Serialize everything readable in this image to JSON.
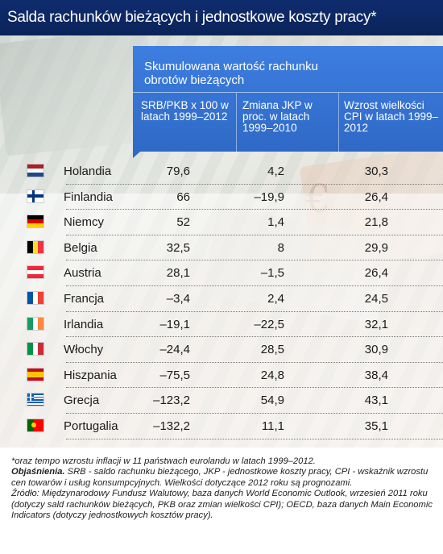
{
  "title": "Salda rachunków bieżących i jednostkowe koszty pracy*",
  "header": {
    "main": "Skumulowana wartość rachunku obrotów bieżących",
    "columns": [
      "SRB/PKB x 100 w latach 1999–2012",
      "Zmiana JKP w proc. w latach 1999–2010",
      "Wzrost wielkości CPI w latach 1999–2012"
    ]
  },
  "rows": [
    {
      "country": "Holandia",
      "flag": "netherlands-flag-icon",
      "colors": [
        "#ae1c28",
        "#ffffff",
        "#21468b"
      ],
      "orient": "h",
      "srb": "79,6",
      "jkp": "4,2",
      "cpi": "30,3"
    },
    {
      "country": "Finlandia",
      "flag": "finland-flag-icon",
      "colors": [
        "#ffffff",
        "#003580"
      ],
      "orient": "cross",
      "srb": "66",
      "jkp": "–19,9",
      "cpi": "26,4"
    },
    {
      "country": "Niemcy",
      "flag": "germany-flag-icon",
      "colors": [
        "#000000",
        "#dd0000",
        "#ffce00"
      ],
      "orient": "h",
      "srb": "52",
      "jkp": "1,4",
      "cpi": "21,8"
    },
    {
      "country": "Belgia",
      "flag": "belgium-flag-icon",
      "colors": [
        "#000000",
        "#fdda24",
        "#ef3340"
      ],
      "orient": "v",
      "srb": "32,5",
      "jkp": "8",
      "cpi": "29,9"
    },
    {
      "country": "Austria",
      "flag": "austria-flag-icon",
      "colors": [
        "#ed2939",
        "#ffffff",
        "#ed2939"
      ],
      "orient": "h",
      "srb": "28,1",
      "jkp": "–1,5",
      "cpi": "26,4"
    },
    {
      "country": "Francja",
      "flag": "france-flag-icon",
      "colors": [
        "#0055a4",
        "#ffffff",
        "#ef4135"
      ],
      "orient": "v",
      "srb": "–3,4",
      "jkp": "2,4",
      "cpi": "24,5"
    },
    {
      "country": "Irlandia",
      "flag": "ireland-flag-icon",
      "colors": [
        "#169b62",
        "#ffffff",
        "#ff883e"
      ],
      "orient": "v",
      "srb": "–19,1",
      "jkp": "–22,5",
      "cpi": "32,1"
    },
    {
      "country": "Włochy",
      "flag": "italy-flag-icon",
      "colors": [
        "#009246",
        "#ffffff",
        "#ce2b37"
      ],
      "orient": "v",
      "srb": "–24,4",
      "jkp": "28,5",
      "cpi": "30,9"
    },
    {
      "country": "Hiszpania",
      "flag": "spain-flag-icon",
      "colors": [
        "#c60b1e",
        "#ffc400",
        "#c60b1e"
      ],
      "orient": "spain",
      "srb": "–75,5",
      "jkp": "24,8",
      "cpi": "38,4"
    },
    {
      "country": "Grecja",
      "flag": "greece-flag-icon",
      "colors": [
        "#0d5eaf",
        "#ffffff"
      ],
      "orient": "greece",
      "srb": "–123,2",
      "jkp": "54,9",
      "cpi": "43,1"
    },
    {
      "country": "Portugalia",
      "flag": "portugal-flag-icon",
      "colors": [
        "#006600",
        "#ff0000"
      ],
      "orient": "portugal",
      "srb": "–132,2",
      "jkp": "11,1",
      "cpi": "35,1"
    }
  ],
  "footnotes": {
    "line1": "*oraz tempo wzrostu inflacji w 11 państwach eurolandu w latach 1999–2012.",
    "expl_label": "Objaśnienia.",
    "expl_text": " SRB - saldo rachunku bieżącego, JKP - jednostkowe koszty pracy, CPI - wskaźnik wzrostu cen towarów i usług konsumpcyjnych. Wielkości dotyczące 2012 roku są prognozami.",
    "source": "Źródło: Międzynarodowy Fundusz Walutowy, baza danych World Economic Outlook, wrzesień 2011 roku (dotyczy sald rachunków bieżących, PKB oraz zmian wielkości CPI); OECD, baza danych Main Economic Indicators (dotyczy jednostkowych kosztów pracy)."
  }
}
